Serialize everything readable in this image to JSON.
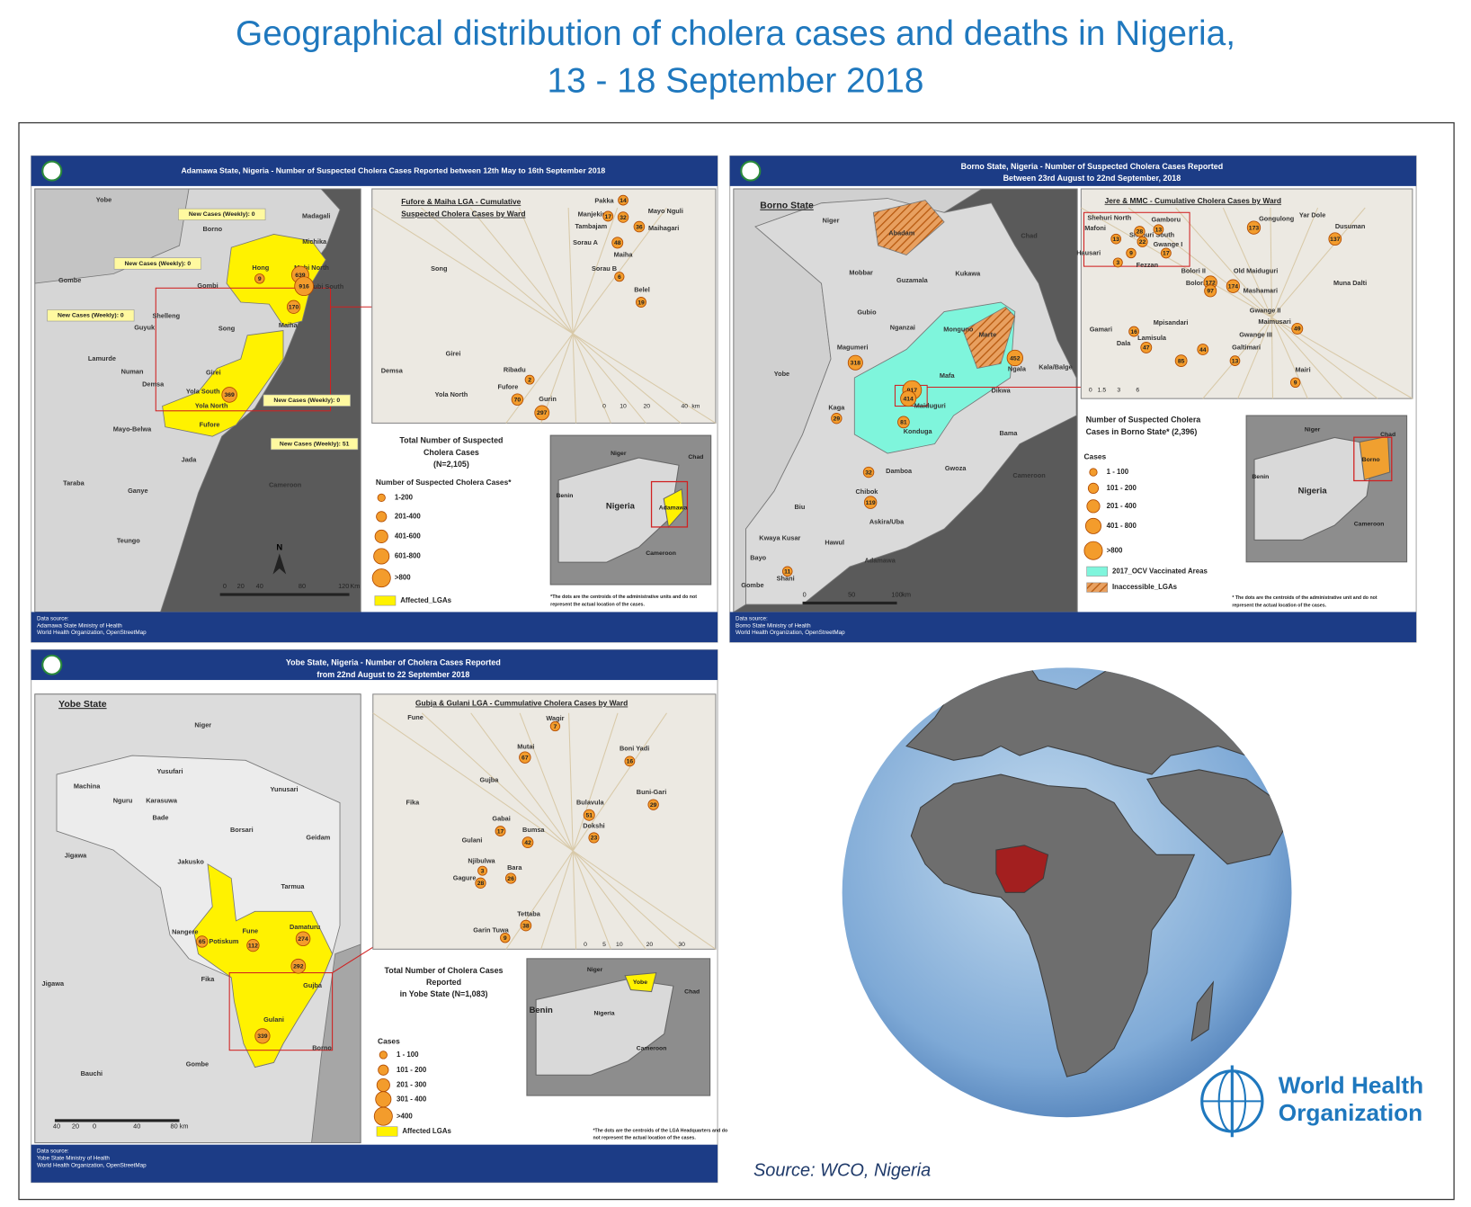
{
  "title": [
    "Geographical distribution of cholera cases and deaths in Nigeria,",
    "13 - 18 September 2018"
  ],
  "panels": [
    {
      "header": [
        "Adamawa State, Nigeria - Number of Suspected Cholera Cases Reported between 12th May to 16th September 2018"
      ],
      "map_labels": [
        "Yobe",
        "Borno",
        "Madagali",
        "Michika",
        "Gombe",
        "Hong",
        "Mubi North",
        "Mubi South",
        "Gombi",
        "Shelleng",
        "Guyuk",
        "Song",
        "Maiha",
        "Lamurde",
        "Numan",
        "Girei",
        "Demsa",
        "Yola South",
        "Yola North",
        "Mayo-Belwa",
        "Fufore",
        "Jada",
        "Taraba",
        "Ganye",
        "Teungo",
        "Cameroon"
      ],
      "cases": [
        639,
        916,
        170,
        9,
        369
      ],
      "callouts": [
        "New Cases (Weekly): 0",
        "New Cases (Weekly): 0",
        "New Cases (Weekly): 0",
        "New Cases (Weekly): 0",
        "New Cases (Weekly): 51"
      ],
      "inset_title": [
        "Fufore & Maiha LGA - Cumulative",
        "Suspected Cholera Cases by Ward"
      ],
      "inset_labels": [
        "Pakka",
        "Manjekin",
        "Tambajam",
        "Sorau A",
        "Sorau B",
        "Mayo Nguli",
        "Maihagari",
        "Belel",
        "Ribadu",
        "Fufore",
        "Gurin",
        "Song",
        "Girei",
        "Yola North",
        "Demsa",
        "Maiha"
      ],
      "inset_cases": [
        14,
        17,
        32,
        36,
        48,
        6,
        19,
        2,
        70,
        297
      ],
      "inset_scale": [
        "0",
        "10",
        "20",
        "40",
        "km"
      ],
      "legend_title": [
        "Total Number of Suspected",
        "Cholera Cases",
        "(N=2,105)"
      ],
      "legend_subtitle": "Number of Suspected Cholera Cases*",
      "legend_items": [
        "1-200",
        "201-400",
        "401-600",
        "601-800",
        ">800"
      ],
      "legend_extra": [
        "Affected_LGAs"
      ],
      "locator_labels": [
        "Niger",
        "Chad",
        "Benin",
        "Nigeria",
        "Adamawa",
        "Cameroon"
      ],
      "footnote": [
        "*The dots are the centroids of the administrative units and do not",
        "represent the actual location of the cases."
      ],
      "scale": [
        "0",
        "20",
        "40",
        "80",
        "120",
        "Km"
      ],
      "north": "N",
      "footer": [
        "Data source:",
        "Adamawa State Ministry of Health",
        "World Health Organization, OpenStreetMap"
      ]
    },
    {
      "header": [
        "Borno State, Nigeria - Number of Suspected Cholera Cases Reported",
        "Between 23rd August  to 22nd September, 2018"
      ],
      "map_title": "Borno State",
      "map_labels": [
        "Niger",
        "Chad",
        "Abadam",
        "Mobbar",
        "Guzamala",
        "Kukawa",
        "Gubio",
        "Nganzai",
        "Monguno",
        "Marte",
        "Magumeri",
        "Yobe",
        "Mafa",
        "Ngala",
        "Kala/Balge",
        "Jere",
        "Maiduguri",
        "Dikwa",
        "Kaga",
        "Konduga",
        "Bama",
        "Damboa",
        "Gwoza",
        "Cameroon",
        "Chibok",
        "Biu",
        "Askira/Uba",
        "Kwaya Kusar",
        "Hawul",
        "Bayo",
        "Shani",
        "Adamawa",
        "Gombe"
      ],
      "cases": [
        318,
        452,
        29,
        917,
        414,
        81,
        32,
        119,
        11
      ],
      "inset_title": [
        "Jere & MMC - Cumulative Cholera Cases by Ward"
      ],
      "inset_labels": [
        "Shehuri North",
        "Gamboru",
        "Mafoni",
        "Shehuri South",
        "Gwange I",
        "Hausari",
        "Fezzan",
        "Gongulong",
        "Yar Dole",
        "Dusuman",
        "Bolori II",
        "Bolori I",
        "Old Maiduguri",
        "Mashamari",
        "Muna Dalti",
        "Gwange II",
        "Maimusari",
        "Gamari",
        "Mpisandari",
        "Gwange III",
        "Dala",
        "Lamisula",
        "Galtimari",
        "Mairi"
      ],
      "inset_cases": [
        173,
        137,
        13,
        28,
        13,
        22,
        9,
        17,
        3,
        172,
        174,
        97,
        49,
        16,
        47,
        85,
        44,
        13,
        9
      ],
      "inset_scale": [
        "0",
        "1.5",
        "3",
        "6"
      ],
      "legend_title": [
        "Number of Suspected Cholera",
        "Cases in Borno State* (2,396)"
      ],
      "legend_subtitle": "Cases",
      "legend_items": [
        "1 - 100",
        "101 - 200",
        "201 - 400",
        "401 - 800",
        ">800"
      ],
      "legend_extra": [
        "2017_OCV Vaccinated Areas",
        "Inaccessible_LGAs"
      ],
      "locator_labels": [
        "Niger",
        "Chad",
        "Benin",
        "Nigeria",
        "Borno",
        "Cameroon"
      ],
      "footnote": [
        "* The dots are the centroids of the administrative unit and do not",
        "represent the actual location of the cases."
      ],
      "scale": [
        "0",
        "50",
        "100",
        "km"
      ],
      "footer": [
        "Data source:",
        "Borno State Ministry of Health",
        "World Health Organization, OpenStreetMap"
      ]
    },
    {
      "header": [
        "Yobe State, Nigeria - Number of Cholera Cases Reported",
        "from 22nd August to 22 September 2018"
      ],
      "map_title": "Yobe State",
      "map_labels": [
        "Niger",
        "Yusufari",
        "Machina",
        "Yunusari",
        "Nguru",
        "Karasuwa",
        "Bade",
        "Borsari",
        "Geidam",
        "Jigawa",
        "Jakusko",
        "Tarmua",
        "Nangere",
        "Potiskum",
        "Fune",
        "Damaturu",
        "Gujba",
        "Fika",
        "Jigawa",
        "Gulani",
        "Borno",
        "Gombe",
        "Bauchi"
      ],
      "cases": [
        65,
        112,
        274,
        292,
        339
      ],
      "inset_title": [
        "Gubja & Gulani LGA - Cummulative Cholera Cases by Ward"
      ],
      "inset_labels": [
        "Wagir",
        "Mutai",
        "Boni Yadi",
        "Buni-Gari",
        "Bulavula",
        "Gabai",
        "Dokshi",
        "Bumsa",
        "Njibulwa",
        "Gagure",
        "Bara",
        "Tettaba",
        "Garin Tuwa",
        "Gujba",
        "Fika",
        "Gulani",
        "Fune"
      ],
      "inset_cases": [
        7,
        67,
        16,
        29,
        51,
        17,
        23,
        42,
        3,
        28,
        26,
        38,
        9
      ],
      "inset_scale": [
        "0",
        "5",
        "10",
        "20",
        "30"
      ],
      "legend_title": [
        "Total Number of Cholera Cases",
        "Reported",
        "in Yobe State (N=1,083)"
      ],
      "legend_subtitle": "Cases",
      "legend_items": [
        "1 - 100",
        "101 - 200",
        "201 - 300",
        "301 - 400",
        ">400"
      ],
      "legend_extra": [
        "Affected LGAs"
      ],
      "locator_labels": [
        "Niger",
        "Yobe",
        "Chad",
        "Benin",
        "Nigeria",
        "Cameroon"
      ],
      "footnote": [
        "*The dots are the centroids of the LGA Headquarters and do",
        "not represent the actual location of the cases."
      ],
      "scale": [
        "40",
        "20",
        "0",
        "40",
        "80 km"
      ],
      "footer": [
        "Data source:",
        "Yobe State Ministry of Health",
        "World Health Organization, OpenStreetMap"
      ]
    }
  ],
  "logo": [
    "World Health",
    "Organization"
  ],
  "source": "Source: WCO, Nigeria"
}
